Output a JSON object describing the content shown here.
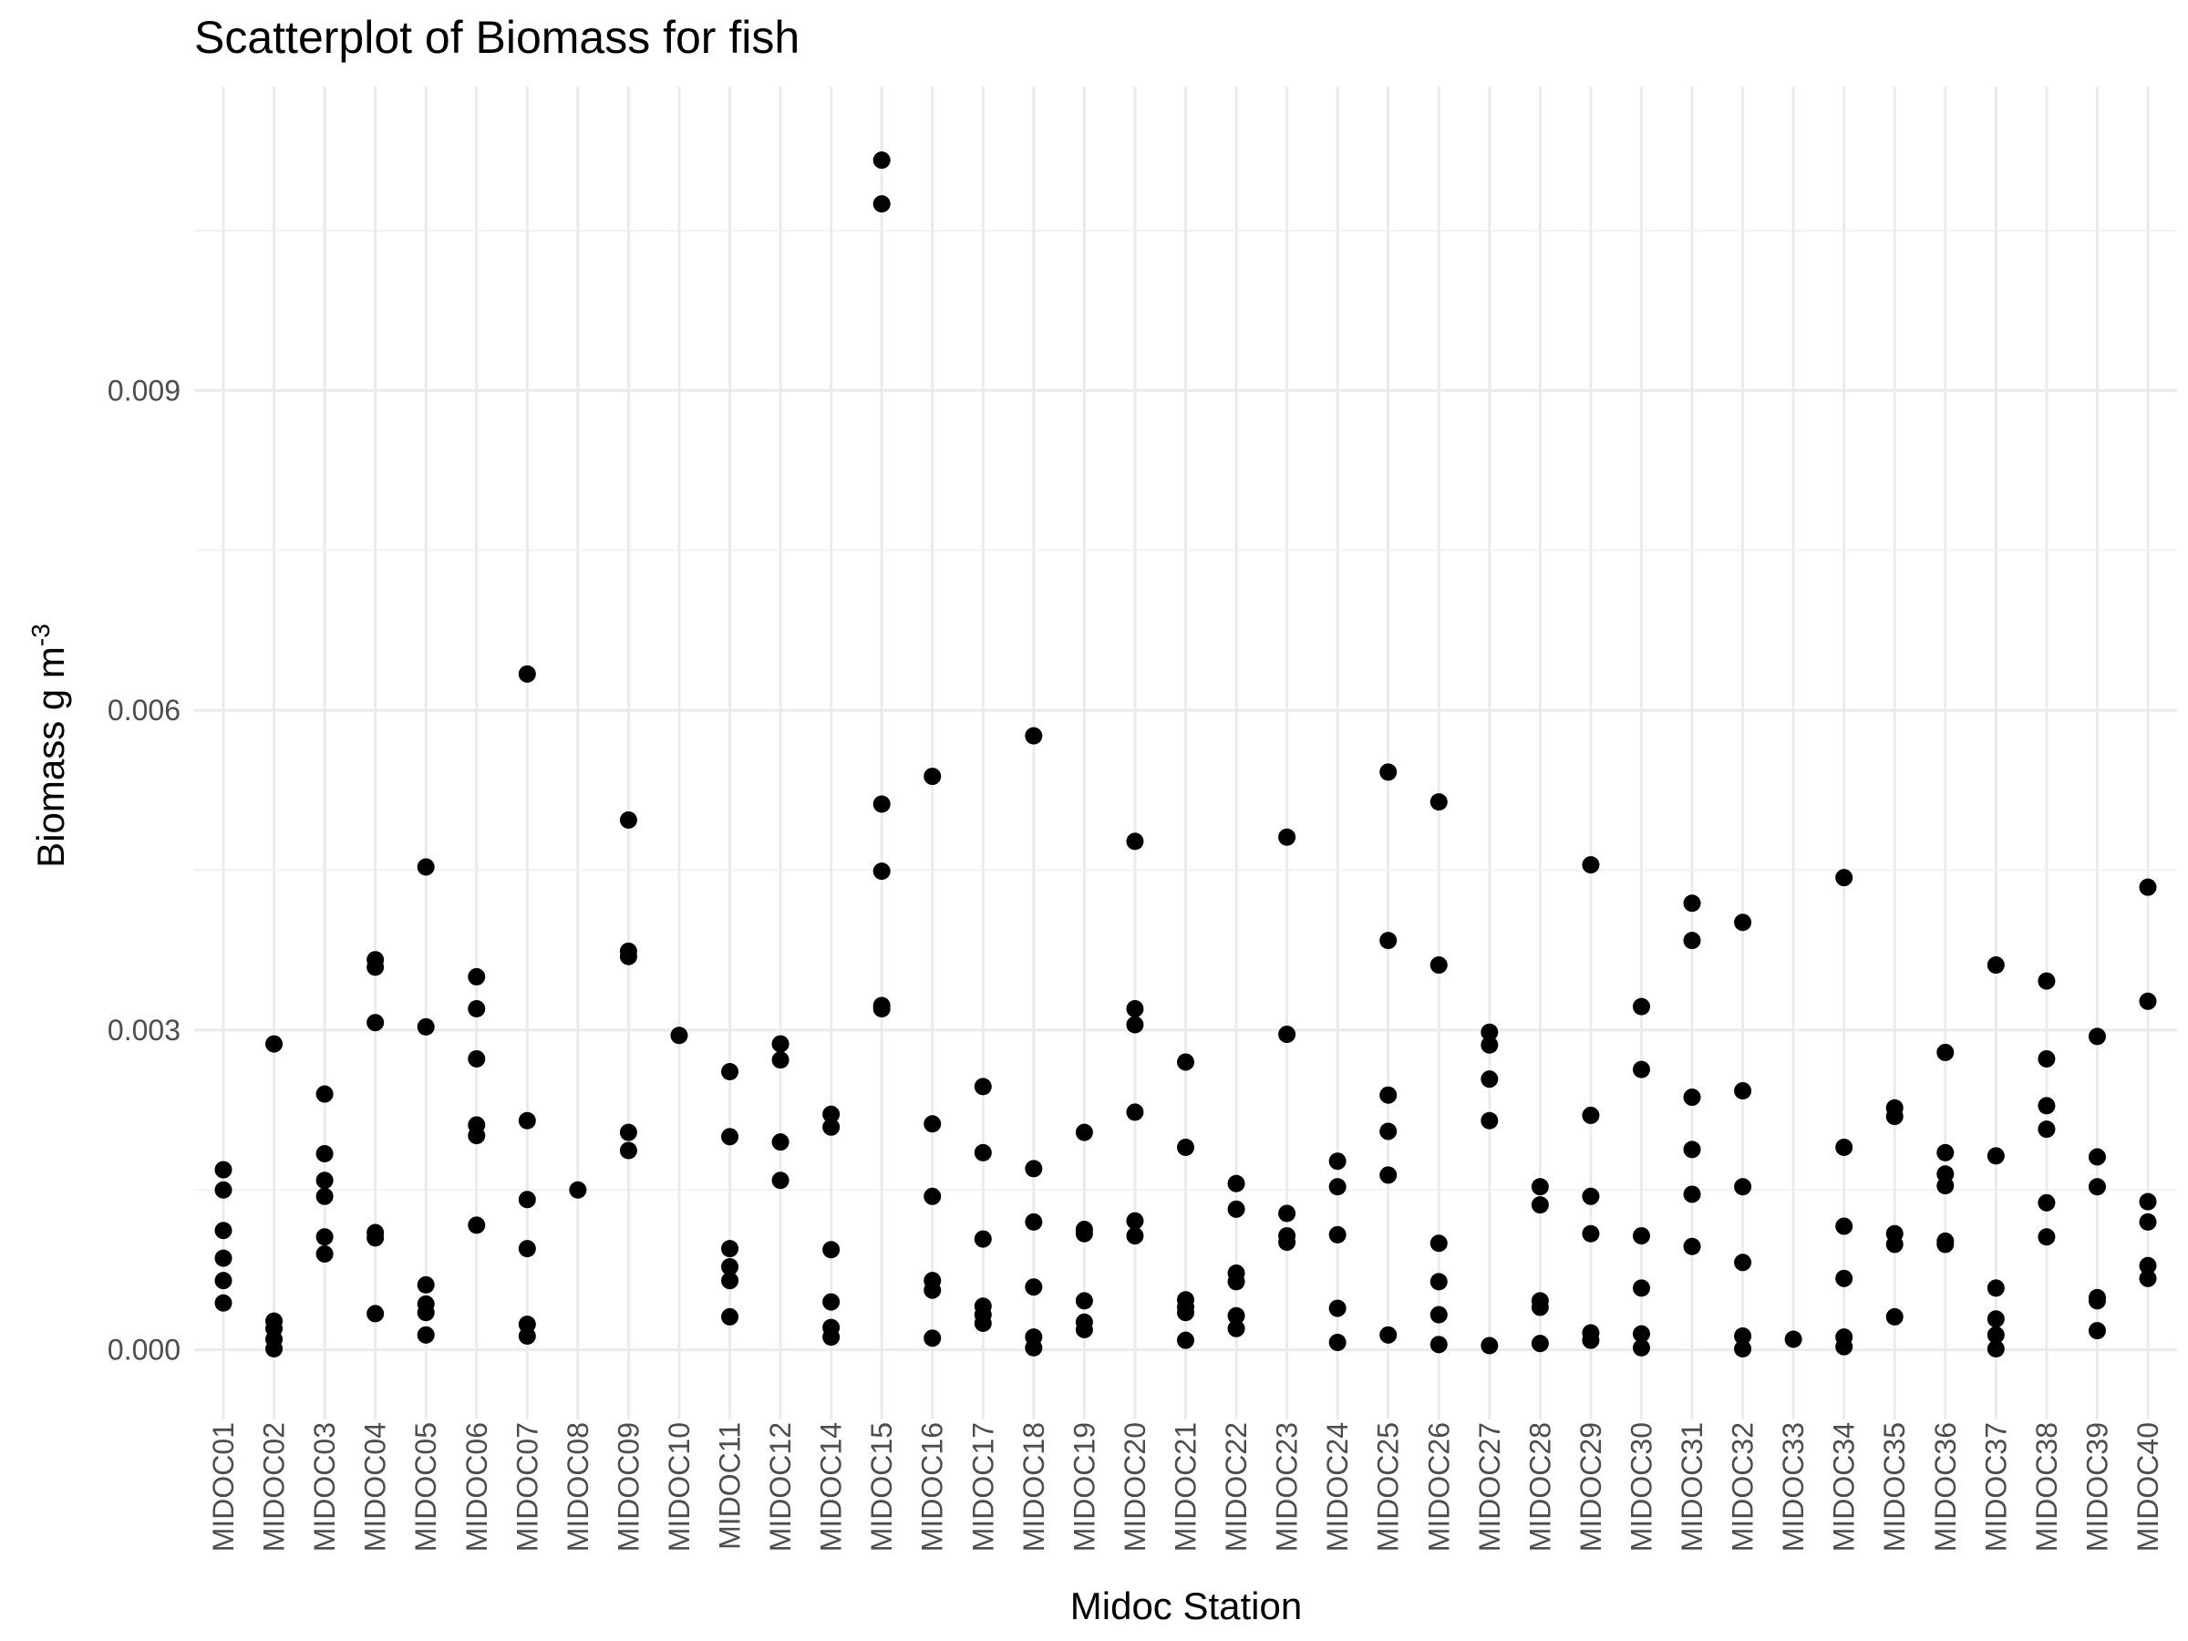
{
  "chart_data": {
    "type": "scatter",
    "title": "Scatterplot of Biomass for fish",
    "xlabel": "Midoc Station",
    "ylabel": "Biomass g m",
    "ylabel_superscript": "-3",
    "ylim": [
      -0.00055,
      0.01185
    ],
    "yticks": [
      0.0,
      0.003,
      0.006,
      0.009
    ],
    "ytick_labels": [
      "0.000",
      "0.003",
      "0.006",
      "0.009"
    ],
    "grid": true,
    "point_color": "#000000",
    "grid_color": "#ebebeb",
    "categories": [
      "MIDOC01",
      "MIDOC02",
      "MIDOC03",
      "MIDOC04",
      "MIDOC05",
      "MIDOC06",
      "MIDOC07",
      "MIDOC08",
      "MIDOC09",
      "MIDOC10",
      "MIDOC11",
      "MIDOC12",
      "MIDOC14",
      "MIDOC15",
      "MIDOC16",
      "MIDOC17",
      "MIDOC18",
      "MIDOC19",
      "MIDOC20",
      "MIDOC21",
      "MIDOC22",
      "MIDOC23",
      "MIDOC24",
      "MIDOC25",
      "MIDOC26",
      "MIDOC27",
      "MIDOC28",
      "MIDOC29",
      "MIDOC30",
      "MIDOC31",
      "MIDOC32",
      "MIDOC33",
      "MIDOC34",
      "MIDOC35",
      "MIDOC36",
      "MIDOC37",
      "MIDOC38",
      "MIDOC39",
      "MIDOC40"
    ],
    "points": [
      {
        "x": "MIDOC01",
        "y": [
          0.00169,
          0.0015,
          0.00112,
          0.00086,
          0.00065,
          0.00044
        ]
      },
      {
        "x": "MIDOC02",
        "y": [
          0.00287,
          0.00027,
          0.0002,
          0.0001,
          1e-05
        ]
      },
      {
        "x": "MIDOC03",
        "y": [
          0.0024,
          0.00184,
          0.00159,
          0.00144,
          0.00106,
          0.0009
        ]
      },
      {
        "x": "MIDOC04",
        "y": [
          0.00366,
          0.00359,
          0.00307,
          0.0011,
          0.00105,
          0.00034
        ]
      },
      {
        "x": "MIDOC05",
        "y": [
          0.00453,
          0.00303,
          0.00061,
          0.00043,
          0.00035,
          0.00014
        ]
      },
      {
        "x": "MIDOC06",
        "y": [
          0.0035,
          0.0032,
          0.00273,
          0.00211,
          0.00201,
          0.00117
        ]
      },
      {
        "x": "MIDOC07",
        "y": [
          0.00634,
          0.00215,
          0.00141,
          0.00095,
          0.00024,
          0.00013
        ]
      },
      {
        "x": "MIDOC08",
        "y": [
          0.0015
        ]
      },
      {
        "x": "MIDOC09",
        "y": [
          0.00497,
          0.00374,
          0.00369,
          0.00204,
          0.00187
        ]
      },
      {
        "x": "MIDOC10",
        "y": [
          0.00295
        ]
      },
      {
        "x": "MIDOC11",
        "y": [
          0.00261,
          0.002,
          0.00095,
          0.00078,
          0.00065,
          0.00031
        ]
      },
      {
        "x": "MIDOC12",
        "y": [
          0.00287,
          0.00272,
          0.00195,
          0.00159
        ]
      },
      {
        "x": "MIDOC14",
        "y": [
          0.00221,
          0.00209,
          0.00094,
          0.00045,
          0.00021,
          0.00012
        ]
      },
      {
        "x": "MIDOC15",
        "y": [
          0.01116,
          0.01075,
          0.00512,
          0.00449,
          0.00323,
          0.0032
        ]
      },
      {
        "x": "MIDOC16",
        "y": [
          0.00538,
          0.00212,
          0.00144,
          0.00065,
          0.00056,
          0.00011
        ]
      },
      {
        "x": "MIDOC17",
        "y": [
          0.00247,
          0.00185,
          0.00104,
          0.00041,
          0.00033,
          0.00025
        ]
      },
      {
        "x": "MIDOC18",
        "y": [
          0.00576,
          0.0017,
          0.0012,
          0.00059,
          0.00012,
          2e-05
        ]
      },
      {
        "x": "MIDOC19",
        "y": [
          0.00204,
          0.00113,
          0.00109,
          0.00046,
          0.00026,
          0.00019
        ]
      },
      {
        "x": "MIDOC20",
        "y": [
          0.00477,
          0.0032,
          0.00305,
          0.00223,
          0.00121,
          0.00107
        ]
      },
      {
        "x": "MIDOC21",
        "y": [
          0.0027,
          0.0019,
          0.00047,
          0.0004,
          0.00035,
          9e-05
        ]
      },
      {
        "x": "MIDOC22",
        "y": [
          0.00156,
          0.00132,
          0.00072,
          0.00064,
          0.00032,
          0.0002
        ]
      },
      {
        "x": "MIDOC23",
        "y": [
          0.00481,
          0.00296,
          0.00128,
          0.00107,
          0.00101
        ]
      },
      {
        "x": "MIDOC24",
        "y": [
          0.00177,
          0.00153,
          0.00108,
          0.00039,
          7e-05
        ]
      },
      {
        "x": "MIDOC25",
        "y": [
          0.00542,
          0.00384,
          0.00239,
          0.00205,
          0.00164,
          0.00014
        ]
      },
      {
        "x": "MIDOC26",
        "y": [
          0.00514,
          0.00361,
          0.001,
          0.00064,
          0.00033,
          5e-05
        ]
      },
      {
        "x": "MIDOC27",
        "y": [
          0.00298,
          0.00286,
          0.00254,
          0.00215,
          4e-05
        ]
      },
      {
        "x": "MIDOC28",
        "y": [
          0.00153,
          0.00136,
          0.00046,
          0.0004,
          6e-05
        ]
      },
      {
        "x": "MIDOC29",
        "y": [
          0.00455,
          0.0022,
          0.00144,
          0.00109,
          0.00016,
          9e-05
        ]
      },
      {
        "x": "MIDOC30",
        "y": [
          0.00322,
          0.00263,
          0.00107,
          0.00058,
          0.00015,
          2e-05
        ]
      },
      {
        "x": "MIDOC31",
        "y": [
          0.00419,
          0.00384,
          0.00237,
          0.00188,
          0.00146,
          0.00097
        ]
      },
      {
        "x": "MIDOC32",
        "y": [
          0.00401,
          0.00243,
          0.00153,
          0.00082,
          0.00013,
          1e-05
        ]
      },
      {
        "x": "MIDOC33",
        "y": [
          0.0001
        ]
      },
      {
        "x": "MIDOC34",
        "y": [
          0.00443,
          0.0019,
          0.00116,
          0.00067,
          0.00012,
          3e-05
        ]
      },
      {
        "x": "MIDOC35",
        "y": [
          0.00227,
          0.00219,
          0.00109,
          0.00099,
          0.00031
        ]
      },
      {
        "x": "MIDOC36",
        "y": [
          0.00279,
          0.00185,
          0.00165,
          0.00154,
          0.00102,
          0.00099
        ]
      },
      {
        "x": "MIDOC37",
        "y": [
          0.00361,
          0.00182,
          0.00058,
          0.00029,
          0.00014,
          1e-05
        ]
      },
      {
        "x": "MIDOC38",
        "y": [
          0.00346,
          0.00273,
          0.00229,
          0.00207,
          0.00138,
          0.00106
        ]
      },
      {
        "x": "MIDOC39",
        "y": [
          0.00294,
          0.00181,
          0.00153,
          0.00049,
          0.00046,
          0.00018
        ]
      },
      {
        "x": "MIDOC40",
        "y": [
          0.00434,
          0.00327,
          0.00139,
          0.0012,
          0.00079,
          0.00067
        ]
      }
    ]
  }
}
